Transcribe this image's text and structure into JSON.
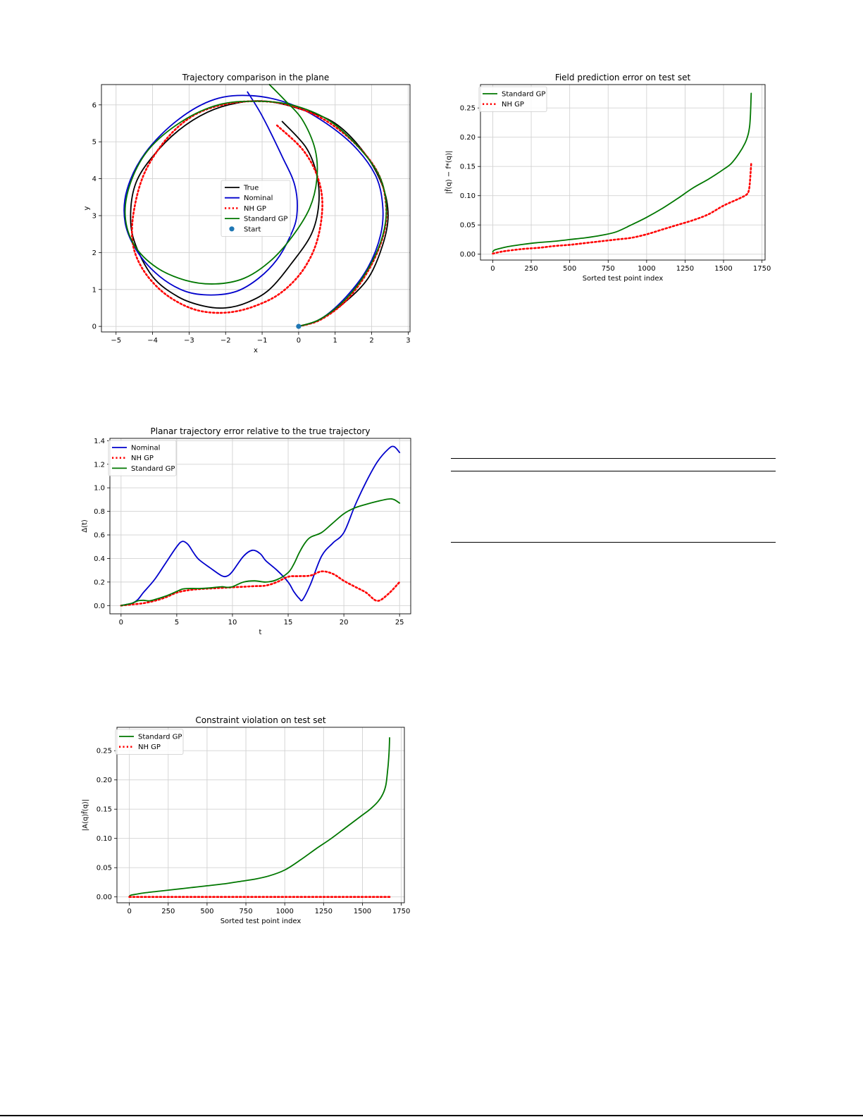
{
  "chart_data": [
    {
      "id": "trajectory",
      "type": "line",
      "title": "Trajectory comparison in the plane",
      "xlabel": "x",
      "ylabel": "y",
      "xlim": [
        -5.4,
        3.05
      ],
      "ylim": [
        -0.15,
        6.55
      ],
      "xticks": [
        -5,
        -4,
        -3,
        -2,
        -1,
        0,
        1,
        2,
        3
      ],
      "yticks": [
        0,
        1,
        2,
        3,
        4,
        5,
        6
      ],
      "xtick_labels": [
        "−5",
        "−4",
        "−3",
        "−2",
        "−1",
        "0",
        "1",
        "2",
        "3"
      ],
      "ytick_labels": [
        "0",
        "1",
        "2",
        "3",
        "4",
        "5",
        "6"
      ],
      "grid": true,
      "legend": "center",
      "series": [
        {
          "name": "True",
          "color": "#000000",
          "style": "solid",
          "x": [
            0,
            0.5,
            1.2,
            1.9,
            2.3,
            2.45,
            2.3,
            1.8,
            1.0,
            0,
            -0.9,
            -1.7,
            -2.5,
            -3.3,
            -4.0,
            -4.45,
            -4.6,
            -4.5,
            -4.0,
            -3.3,
            -2.6,
            -2.0,
            -1.4,
            -0.8,
            -0.2,
            0.35,
            0.55,
            0.5,
            0.2,
            -0.45
          ],
          "y": [
            0,
            0.15,
            0.6,
            1.3,
            2.2,
            3.0,
            3.8,
            4.7,
            5.5,
            5.9,
            6.1,
            6.05,
            5.8,
            5.3,
            4.6,
            3.9,
            3.1,
            2.3,
            1.35,
            0.8,
            0.55,
            0.5,
            0.65,
            1.0,
            1.7,
            2.5,
            3.3,
            4.1,
            4.85,
            5.55
          ]
        },
        {
          "name": "Nominal",
          "color": "#0000cc",
          "style": "solid",
          "x": [
            0,
            0.6,
            1.3,
            1.9,
            2.25,
            2.3,
            2.1,
            1.5,
            0.6,
            -0.3,
            -1.3,
            -2.3,
            -3.3,
            -4.2,
            -4.7,
            -4.75,
            -4.4,
            -3.8,
            -3.1,
            -2.4,
            -1.7,
            -1.1,
            -0.6,
            -0.25,
            -0.05,
            -0.1,
            -0.45,
            -1.0,
            -1.4
          ],
          "y": [
            0,
            0.2,
            0.8,
            1.6,
            2.5,
            3.3,
            4.1,
            4.9,
            5.6,
            6.05,
            6.25,
            6.15,
            5.6,
            4.7,
            3.7,
            2.8,
            2.0,
            1.35,
            0.95,
            0.85,
            0.95,
            1.3,
            1.8,
            2.4,
            3.0,
            3.8,
            4.6,
            5.7,
            6.35
          ]
        },
        {
          "name": "NH GP",
          "color": "#ff0000",
          "style": "dotted",
          "x": [
            0,
            0.6,
            1.3,
            1.9,
            2.3,
            2.4,
            2.2,
            1.6,
            0.7,
            -0.3,
            -1.2,
            -2.1,
            -2.9,
            -3.6,
            -4.2,
            -4.5,
            -4.55,
            -4.3,
            -3.8,
            -3.2,
            -2.6,
            -1.9,
            -1.2,
            -0.5,
            0.1,
            0.5,
            0.65,
            0.5,
            0.1,
            -0.6
          ],
          "y": [
            0,
            0.18,
            0.7,
            1.5,
            2.4,
            3.2,
            4.1,
            4.9,
            5.6,
            6.0,
            6.1,
            6.0,
            5.7,
            5.1,
            4.2,
            3.2,
            2.3,
            1.6,
            1.0,
            0.6,
            0.4,
            0.38,
            0.55,
            0.9,
            1.5,
            2.3,
            3.3,
            4.1,
            4.8,
            5.45
          ]
        },
        {
          "name": "Standard GP",
          "color": "#007700",
          "style": "solid",
          "x": [
            0,
            0.6,
            1.3,
            1.9,
            2.3,
            2.4,
            2.2,
            1.6,
            0.8,
            -0.2,
            -1.2,
            -2.2,
            -3.2,
            -4.1,
            -4.6,
            -4.75,
            -4.5,
            -3.9,
            -3.1,
            -2.3,
            -1.5,
            -0.8,
            -0.2,
            0.3,
            0.5,
            0.45,
            0.1,
            -0.4,
            -0.8
          ],
          "y": [
            0,
            0.2,
            0.75,
            1.55,
            2.45,
            3.3,
            4.1,
            4.9,
            5.6,
            6.0,
            6.1,
            6.0,
            5.55,
            4.8,
            3.9,
            3.0,
            2.2,
            1.6,
            1.25,
            1.15,
            1.3,
            1.75,
            2.4,
            3.2,
            4.0,
            4.8,
            5.6,
            6.15,
            6.55
          ]
        }
      ],
      "points": [
        {
          "name": "Start",
          "x": 0,
          "y": 0,
          "color": "#1f77b4"
        }
      ]
    },
    {
      "id": "field_error",
      "type": "line",
      "title": "Field prediction error on test set",
      "xlabel": "Sorted test point index",
      "ylabel": "|f̂(q) − f*(q)|",
      "xlim": [
        -80,
        1770
      ],
      "ylim": [
        -0.01,
        0.29
      ],
      "xticks": [
        0,
        250,
        500,
        750,
        1000,
        1250,
        1500,
        1750
      ],
      "yticks": [
        0,
        0.05,
        0.1,
        0.15,
        0.2,
        0.25
      ],
      "xtick_labels": [
        "0",
        "250",
        "500",
        "750",
        "1000",
        "1250",
        "1500",
        "1750"
      ],
      "ytick_labels": [
        "0.00",
        "0.05",
        "0.10",
        "0.15",
        "0.20",
        "0.25"
      ],
      "grid": true,
      "legend": "top-left",
      "series": [
        {
          "name": "Standard GP",
          "color": "#007700",
          "style": "solid",
          "x": [
            0,
            10,
            50,
            100,
            200,
            300,
            400,
            500,
            600,
            700,
            800,
            900,
            1000,
            1100,
            1200,
            1300,
            1400,
            1500,
            1550,
            1600,
            1640,
            1660,
            1670,
            1675,
            1680
          ],
          "y": [
            0.004,
            0.007,
            0.01,
            0.013,
            0.017,
            0.02,
            0.022,
            0.025,
            0.028,
            0.032,
            0.038,
            0.05,
            0.063,
            0.078,
            0.095,
            0.113,
            0.128,
            0.145,
            0.155,
            0.172,
            0.19,
            0.205,
            0.22,
            0.24,
            0.275
          ]
        },
        {
          "name": "NH GP",
          "color": "#ff0000",
          "style": "dotted",
          "x": [
            0,
            50,
            100,
            200,
            300,
            400,
            500,
            600,
            700,
            800,
            900,
            1000,
            1100,
            1200,
            1300,
            1400,
            1500,
            1600,
            1650,
            1665,
            1672,
            1676,
            1680
          ],
          "y": [
            0.001,
            0.004,
            0.006,
            0.009,
            0.011,
            0.014,
            0.016,
            0.019,
            0.022,
            0.025,
            0.028,
            0.034,
            0.042,
            0.05,
            0.058,
            0.068,
            0.083,
            0.095,
            0.102,
            0.11,
            0.125,
            0.14,
            0.155
          ]
        }
      ]
    },
    {
      "id": "planar_error",
      "type": "line",
      "title": "Planar trajectory error relative to the true trajectory",
      "xlabel": "t",
      "ylabel": "Δ(t)",
      "xlim": [
        -1,
        26
      ],
      "ylim": [
        -0.07,
        1.42
      ],
      "xticks": [
        0,
        5,
        10,
        15,
        20,
        25
      ],
      "yticks": [
        0,
        0.2,
        0.4,
        0.6,
        0.8,
        1.0,
        1.2,
        1.4
      ],
      "xtick_labels": [
        "0",
        "5",
        "10",
        "15",
        "20",
        "25"
      ],
      "ytick_labels": [
        "0.0",
        "0.2",
        "0.4",
        "0.6",
        "0.8",
        "1.0",
        "1.2",
        "1.4"
      ],
      "grid": true,
      "legend": "top-left",
      "series": [
        {
          "name": "Nominal",
          "color": "#0000cc",
          "style": "solid",
          "x": [
            0,
            0.5,
            1,
            1.5,
            2,
            3,
            4,
            5,
            5.5,
            6,
            6.5,
            7,
            8,
            9,
            9.5,
            10,
            11,
            11.8,
            12.5,
            13,
            14,
            15,
            15.5,
            16,
            16.3,
            17,
            18,
            19,
            20,
            21,
            22,
            23,
            24,
            24.5,
            25
          ],
          "y": [
            0,
            0.01,
            0.02,
            0.05,
            0.11,
            0.22,
            0.36,
            0.5,
            0.545,
            0.52,
            0.45,
            0.39,
            0.32,
            0.255,
            0.25,
            0.29,
            0.42,
            0.47,
            0.44,
            0.38,
            0.3,
            0.2,
            0.12,
            0.06,
            0.05,
            0.18,
            0.42,
            0.53,
            0.62,
            0.85,
            1.05,
            1.22,
            1.33,
            1.35,
            1.3
          ]
        },
        {
          "name": "NH GP",
          "color": "#ff0000",
          "style": "dotted",
          "x": [
            0,
            1,
            2,
            3,
            4,
            5,
            6,
            7,
            8,
            9,
            10,
            11,
            12,
            13,
            14,
            15,
            16,
            17,
            18,
            19,
            20,
            21,
            22,
            23,
            24,
            25
          ],
          "y": [
            0,
            0.01,
            0.02,
            0.04,
            0.07,
            0.11,
            0.13,
            0.14,
            0.145,
            0.15,
            0.155,
            0.16,
            0.165,
            0.17,
            0.2,
            0.245,
            0.25,
            0.255,
            0.29,
            0.27,
            0.21,
            0.16,
            0.11,
            0.04,
            0.1,
            0.2
          ]
        },
        {
          "name": "Standard GP",
          "color": "#007700",
          "style": "solid",
          "x": [
            0,
            1,
            1.5,
            2,
            2.5,
            3,
            4,
            5,
            5.5,
            6,
            7,
            8,
            9,
            9.5,
            10,
            11,
            12,
            13,
            14,
            15,
            15.5,
            16,
            16.5,
            17,
            18,
            19,
            20,
            21,
            22,
            23,
            24,
            24.5,
            25
          ],
          "y": [
            0,
            0.02,
            0.04,
            0.045,
            0.04,
            0.05,
            0.08,
            0.12,
            0.14,
            0.145,
            0.145,
            0.15,
            0.16,
            0.155,
            0.16,
            0.2,
            0.21,
            0.2,
            0.22,
            0.28,
            0.35,
            0.45,
            0.53,
            0.58,
            0.62,
            0.7,
            0.78,
            0.83,
            0.86,
            0.885,
            0.905,
            0.9,
            0.87
          ]
        }
      ]
    },
    {
      "id": "constraint_violation",
      "type": "line",
      "title": "Constraint violation on test set",
      "xlabel": "Sorted test point index",
      "ylabel": "|A(q)f̂(q)|",
      "xlim": [
        -80,
        1770
      ],
      "ylim": [
        -0.01,
        0.29
      ],
      "xticks": [
        0,
        250,
        500,
        750,
        1000,
        1250,
        1500,
        1750
      ],
      "yticks": [
        0,
        0.05,
        0.1,
        0.15,
        0.2,
        0.25
      ],
      "xtick_labels": [
        "0",
        "250",
        "500",
        "750",
        "1000",
        "1250",
        "1500",
        "1750"
      ],
      "ytick_labels": [
        "0.00",
        "0.05",
        "0.10",
        "0.15",
        "0.20",
        "0.25"
      ],
      "grid": true,
      "legend": "top-left",
      "series": [
        {
          "name": "Standard GP",
          "color": "#007700",
          "style": "solid",
          "x": [
            0,
            10,
            50,
            100,
            200,
            300,
            400,
            500,
            600,
            700,
            800,
            900,
            1000,
            1100,
            1200,
            1300,
            1400,
            1500,
            1550,
            1600,
            1630,
            1650,
            1660,
            1670,
            1675
          ],
          "y": [
            0.001,
            0.003,
            0.005,
            0.007,
            0.01,
            0.013,
            0.016,
            0.019,
            0.022,
            0.026,
            0.03,
            0.036,
            0.046,
            0.063,
            0.082,
            0.1,
            0.12,
            0.14,
            0.15,
            0.163,
            0.175,
            0.19,
            0.21,
            0.24,
            0.272
          ]
        },
        {
          "name": "NH GP",
          "color": "#ff0000",
          "style": "dotted",
          "x": [
            0,
            1675
          ],
          "y": [
            0,
            0
          ]
        }
      ]
    }
  ]
}
